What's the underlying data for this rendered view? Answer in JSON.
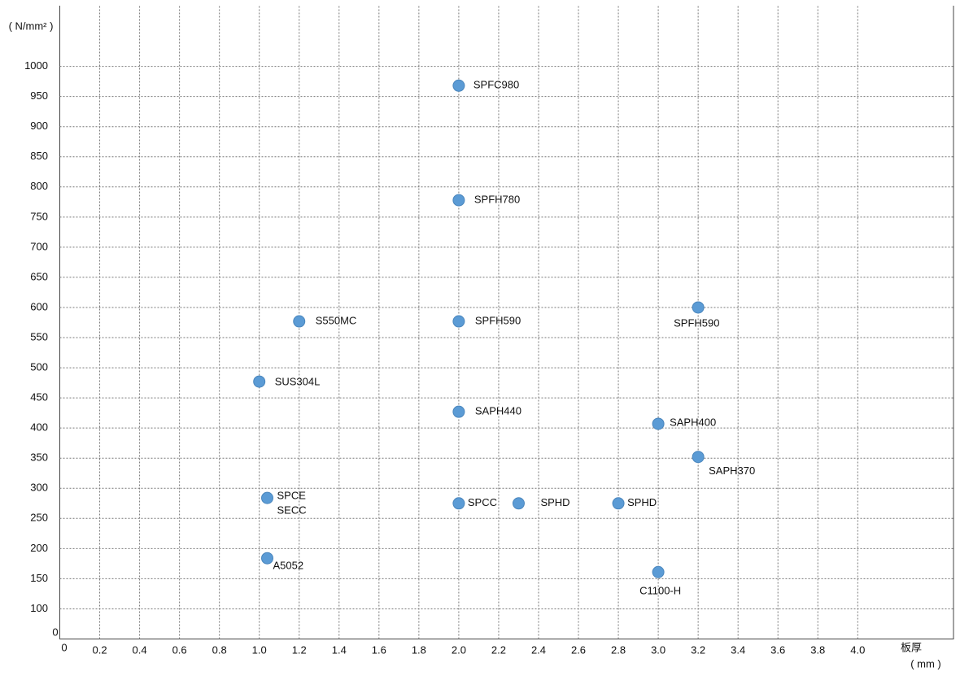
{
  "chart_data": {
    "type": "scatter",
    "y_label": "( N/mm² )",
    "x_label": "板厚",
    "x_unit": "( mm )",
    "origin_label": "0",
    "xlim": [
      0,
      4.48
    ],
    "ylim": [
      50,
      1100
    ],
    "xticks": [
      0.2,
      0.4,
      0.6,
      0.8,
      {
        "value": 1,
        "label": "1.0"
      },
      1.2,
      1.4,
      1.6,
      1.8,
      {
        "value": 2,
        "label": "2.0"
      },
      2.2,
      2.4,
      2.6,
      2.8,
      {
        "value": 3,
        "label": "3.0"
      },
      3.2,
      3.4,
      3.6,
      3.8,
      {
        "value": 4,
        "label": "4.0"
      }
    ],
    "yticks": [
      100,
      150,
      200,
      250,
      300,
      350,
      400,
      450,
      500,
      550,
      600,
      650,
      700,
      750,
      800,
      850,
      900,
      950,
      1000
    ],
    "grid": true,
    "series": [
      {
        "color": "#5b9bd5",
        "x": [
          2.0,
          2.0,
          1.2,
          2.0,
          3.2,
          1.0,
          2.0,
          3.0,
          3.2,
          1.04,
          2.0,
          2.3,
          2.8,
          1.04,
          3.0
        ],
        "values": [
          968,
          778,
          577,
          577,
          600,
          477,
          427,
          407,
          352,
          284,
          275,
          275,
          275,
          184,
          161
        ],
        "labels": [
          "SPFC980",
          "SPFH780",
          "S550MC",
          "SPFH590",
          "SPFH590",
          "SUS304L",
          "SAPH440",
          "SAPH400",
          "SAPH370",
          [
            "SPCE",
            "SECC"
          ],
          "SPCC",
          "SPHD",
          "SPHD",
          "A5052",
          "C1100-H"
        ]
      }
    ]
  }
}
